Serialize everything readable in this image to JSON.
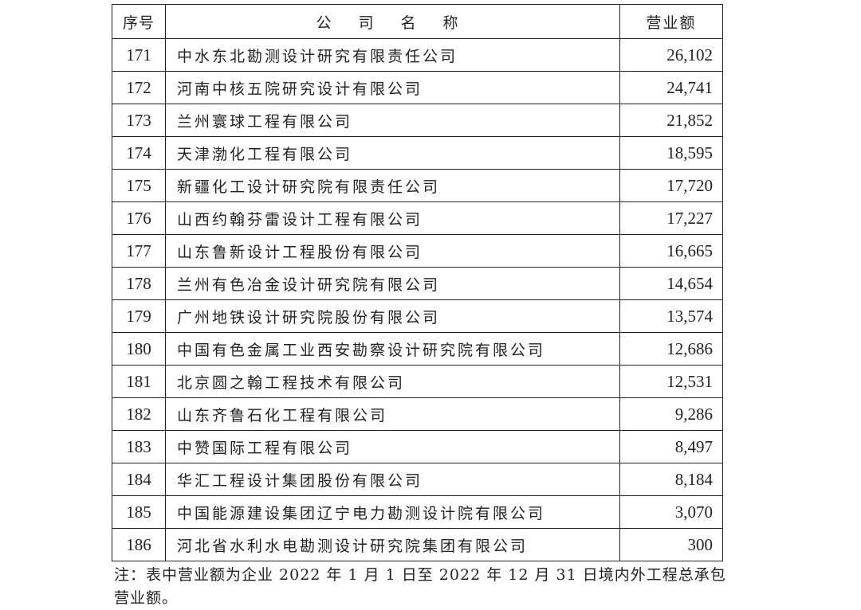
{
  "table": {
    "headers": {
      "index": "序号",
      "name": "公 司 名 称",
      "revenue": "营业额"
    },
    "rows": [
      {
        "index": "171",
        "name": "中水东北勘测设计研究有限责任公司",
        "revenue": "26,102"
      },
      {
        "index": "172",
        "name": "河南中核五院研究设计有限公司",
        "revenue": "24,741"
      },
      {
        "index": "173",
        "name": "兰州寰球工程有限公司",
        "revenue": "21,852"
      },
      {
        "index": "174",
        "name": "天津渤化工程有限公司",
        "revenue": "18,595"
      },
      {
        "index": "175",
        "name": "新疆化工设计研究院有限责任公司",
        "revenue": "17,720"
      },
      {
        "index": "176",
        "name": "山西约翰芬雷设计工程有限公司",
        "revenue": "17,227"
      },
      {
        "index": "177",
        "name": "山东鲁新设计工程股份有限公司",
        "revenue": "16,665"
      },
      {
        "index": "178",
        "name": "兰州有色冶金设计研究院有限公司",
        "revenue": "14,654"
      },
      {
        "index": "179",
        "name": "广州地铁设计研究院股份有限公司",
        "revenue": "13,574"
      },
      {
        "index": "180",
        "name": "中国有色金属工业西安勘察设计研究院有限公司",
        "revenue": "12,686"
      },
      {
        "index": "181",
        "name": "北京圆之翰工程技术有限公司",
        "revenue": "12,531"
      },
      {
        "index": "182",
        "name": "山东齐鲁石化工程有限公司",
        "revenue": "9,286"
      },
      {
        "index": "183",
        "name": "中赞国际工程有限公司",
        "revenue": "8,497"
      },
      {
        "index": "184",
        "name": "华汇工程设计集团股份有限公司",
        "revenue": "8,184"
      },
      {
        "index": "185",
        "name": "中国能源建设集团辽宁电力勘测设计院有限公司",
        "revenue": "3,070"
      },
      {
        "index": "186",
        "name": "河北省水利水电勘测设计研究院集团有限公司",
        "revenue": "300"
      }
    ]
  },
  "note": "注：表中营业额为企业 2022 年 1 月 1 日至 2022 年 12 月 31 日境内外工程总承包营业额。"
}
